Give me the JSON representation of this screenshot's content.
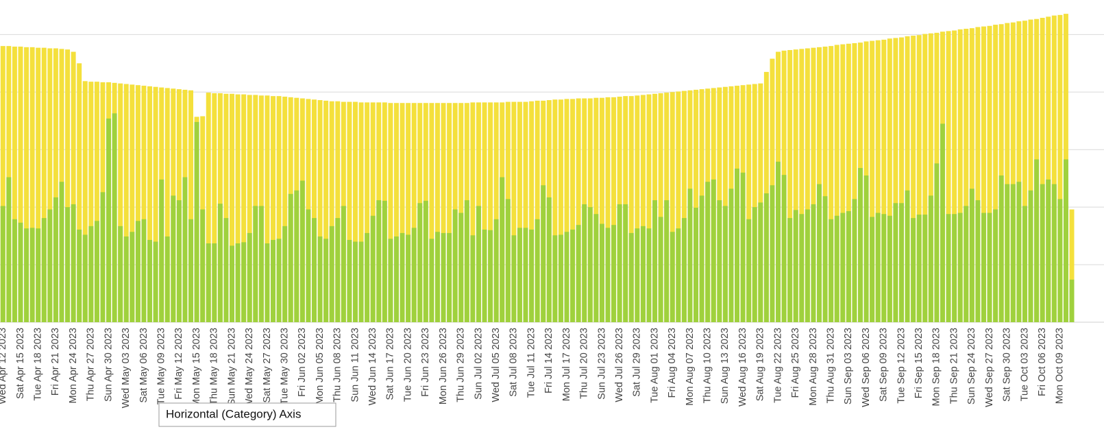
{
  "chart_data": {
    "type": "bar",
    "categories": [
      "Wed Apr 12 2023",
      null,
      null,
      "Sat Apr 15 2023",
      null,
      null,
      "Tue Apr 18 2023",
      null,
      null,
      "Fri Apr 21 2023",
      null,
      null,
      "Mon Apr 24 2023",
      null,
      null,
      "Thu Apr 27 2023",
      null,
      null,
      "Sun Apr 30 2023",
      null,
      null,
      "Wed May 03 2023",
      null,
      null,
      "Sat May 06 2023",
      null,
      null,
      "Tue May 09 2023",
      null,
      null,
      "Fri May 12 2023",
      null,
      null,
      "Mon May 15 2023",
      null,
      null,
      "Thu May 18 2023",
      null,
      null,
      "Sun May 21 2023",
      null,
      null,
      "Wed May 24 2023",
      null,
      null,
      "Sat May 27 2023",
      null,
      null,
      "Tue May 30 2023",
      null,
      null,
      "Fri Jun 02 2023",
      null,
      null,
      "Mon Jun 05 2023",
      null,
      null,
      "Thu Jun 08 2023",
      null,
      null,
      "Sun Jun 11 2023",
      null,
      null,
      "Wed Jun 14 2023",
      null,
      null,
      "Sat Jun 17 2023",
      null,
      null,
      "Tue Jun 20 2023",
      null,
      null,
      "Fri Jun 23 2023",
      null,
      null,
      "Mon Jun 26 2023",
      null,
      null,
      "Thu Jun 29 2023",
      null,
      null,
      "Sun Jul 02 2023",
      null,
      null,
      "Wed Jul 05 2023",
      null,
      null,
      "Sat Jul 08 2023",
      null,
      null,
      "Tue Jul 11 2023",
      null,
      null,
      "Fri Jul 14 2023",
      null,
      null,
      "Mon Jul 17 2023",
      null,
      null,
      "Thu Jul 20 2023",
      null,
      null,
      "Sun Jul 23 2023",
      null,
      null,
      "Wed Jul 26 2023",
      null,
      null,
      "Sat Jul 29 2023",
      null,
      null,
      "Tue Aug 01 2023",
      null,
      null,
      "Fri Aug 04 2023",
      null,
      null,
      "Mon Aug 07 2023",
      null,
      null,
      "Thu Aug 10 2023",
      null,
      null,
      "Sun Aug 13 2023",
      null,
      null,
      "Wed Aug 16 2023",
      null,
      null,
      "Sat Aug 19 2023",
      null,
      null,
      "Tue Aug 22 2023",
      null,
      null,
      "Fri Aug 25 2023",
      null,
      null,
      "Mon Aug 28 2023",
      null,
      null,
      "Thu Aug 31 2023",
      null,
      null,
      "Sun Sep 03 2023",
      null,
      null,
      "Wed Sep 06 2023",
      null,
      null,
      "Sat Sep 09 2023",
      null,
      null,
      "Tue Sep 12 2023",
      null,
      null,
      "Fri Sep 15 2023",
      null,
      null,
      "Mon Sep 18 2023",
      null,
      null,
      "Thu Sep 21 2023",
      null,
      null,
      "Sun Sep 24 2023",
      null,
      null,
      "Wed Sep 27 2023",
      null,
      null,
      "Sat Sep 30 2023",
      null,
      null,
      "Tue Oct 03 2023",
      null,
      null,
      "Fri Oct 06 2023",
      null,
      null,
      "Mon Oct 09 2023",
      null,
      null
    ],
    "series": [
      {
        "color": "#f4e03c",
        "values": [
          480,
          480,
          479,
          479,
          478,
          478,
          477,
          477,
          476,
          476,
          475,
          474,
          470,
          450,
          419,
          418,
          418,
          417,
          417,
          416,
          415,
          414,
          413,
          412,
          411,
          410,
          409,
          408,
          407,
          406,
          405,
          404,
          403,
          357,
          358,
          399,
          398,
          398,
          397,
          397,
          396,
          396,
          395,
          395,
          394,
          394,
          393,
          393,
          392,
          391,
          390,
          389,
          388,
          387,
          386,
          385,
          384,
          384,
          383,
          383,
          383,
          382,
          382,
          382,
          382,
          382,
          381,
          381,
          381,
          381,
          381,
          381,
          381,
          381,
          381,
          381,
          381,
          381,
          381,
          381,
          382,
          382,
          382,
          382,
          382,
          382,
          383,
          383,
          383,
          383,
          384,
          385,
          385,
          386,
          387,
          387,
          388,
          388,
          389,
          389,
          389,
          390,
          390,
          391,
          391,
          392,
          393,
          393,
          394,
          395,
          396,
          397,
          398,
          399,
          400,
          401,
          402,
          403,
          404,
          405,
          406,
          407,
          408,
          409,
          410,
          411,
          412,
          413,
          414,
          415,
          435,
          458,
          470,
          472,
          473,
          474,
          475,
          476,
          477,
          478,
          479,
          480,
          482,
          483,
          484,
          485,
          486,
          488,
          489,
          490,
          491,
          493,
          494,
          495,
          497,
          498,
          499,
          501,
          502,
          503,
          505,
          506,
          507,
          509,
          510,
          511,
          513,
          514,
          515,
          517,
          518,
          520,
          521,
          523,
          524,
          526,
          527,
          529,
          531,
          533,
          534,
          536,
          196
        ]
      },
      {
        "color": "#9fd13d",
        "values": [
          202,
          252,
          179,
          173,
          163,
          164,
          163,
          181,
          196,
          217,
          244,
          200,
          205,
          161,
          152,
          167,
          176,
          226,
          354,
          363,
          167,
          149,
          157,
          176,
          179,
          143,
          140,
          248,
          149,
          220,
          212,
          252,
          179,
          348,
          196,
          137,
          137,
          206,
          181,
          133,
          137,
          139,
          155,
          202,
          202,
          137,
          143,
          145,
          167,
          223,
          229,
          246,
          196,
          181,
          149,
          145,
          167,
          181,
          202,
          143,
          140,
          140,
          155,
          185,
          212,
          211,
          145,
          149,
          155,
          152,
          164,
          207,
          211,
          145,
          157,
          155,
          155,
          196,
          190,
          212,
          151,
          202,
          161,
          160,
          179,
          252,
          214,
          151,
          164,
          164,
          161,
          179,
          238,
          217,
          151,
          152,
          157,
          161,
          169,
          205,
          200,
          188,
          171,
          164,
          169,
          205,
          205,
          155,
          163,
          167,
          163,
          212,
          183,
          212,
          157,
          163,
          181,
          232,
          199,
          220,
          244,
          248,
          212,
          202,
          232,
          267,
          260,
          179,
          200,
          208,
          224,
          238,
          279,
          256,
          181,
          195,
          188,
          196,
          205,
          240,
          219,
          179,
          185,
          190,
          193,
          214,
          268,
          255,
          183,
          190,
          188,
          185,
          207,
          207,
          229,
          181,
          187,
          187,
          220,
          276,
          345,
          188,
          188,
          190,
          202,
          232,
          212,
          190,
          190,
          196,
          255,
          240,
          240,
          244,
          202,
          229,
          283,
          240,
          248,
          240,
          214,
          283,
          74
        ]
      }
    ],
    "ylim": [
      0,
      560
    ],
    "yticks": [
      100,
      200,
      300,
      400,
      500
    ],
    "grid": true,
    "tooltip": "Horizontal (Category) Axis"
  }
}
